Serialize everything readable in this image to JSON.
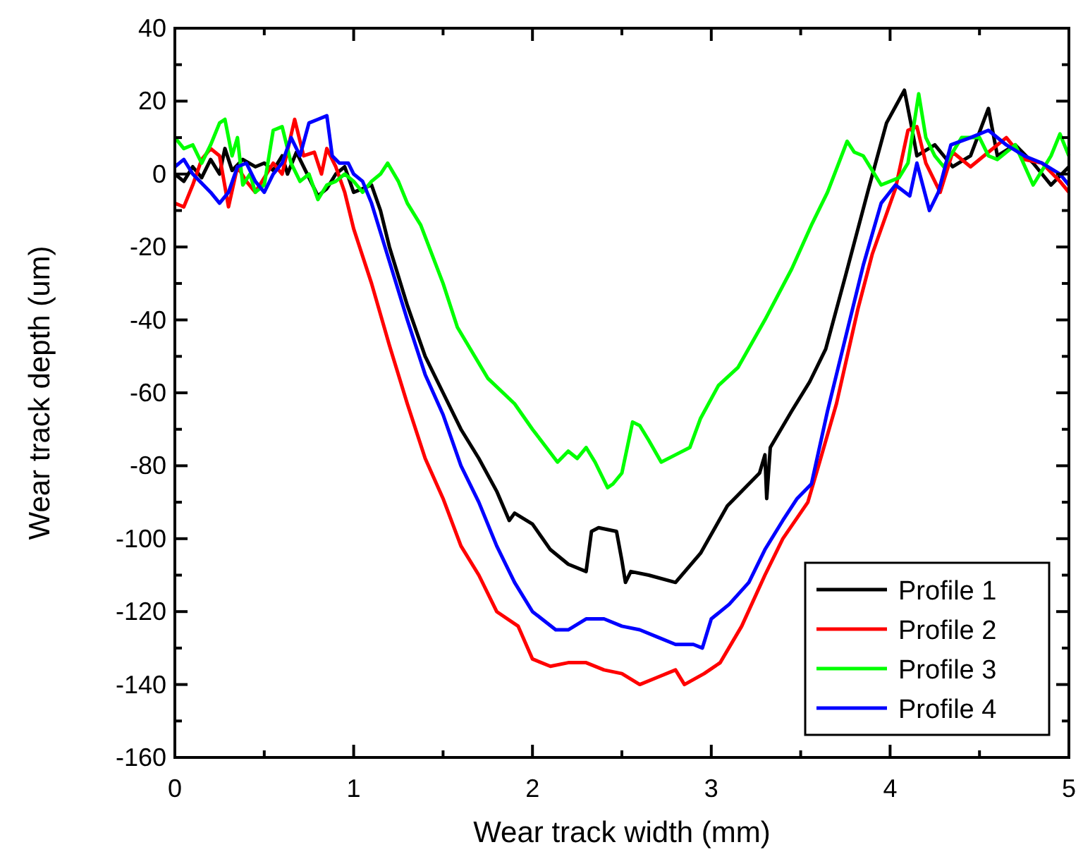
{
  "chart_data": {
    "type": "line",
    "xlabel": "Wear track width (mm)",
    "ylabel": "Wear track depth (um)",
    "xlim": [
      0,
      5
    ],
    "ylim": [
      -160,
      40
    ],
    "xticks": [
      0,
      {
        "value": 0.5,
        "label": null
      },
      1,
      {
        "value": 1.5,
        "label": null
      },
      2,
      {
        "value": 2.5,
        "label": null
      },
      3,
      {
        "value": 3.5,
        "label": null
      },
      4,
      {
        "value": 4.5,
        "label": null
      },
      5
    ],
    "yticks": [
      40,
      {
        "value": 30,
        "label": null
      },
      20,
      {
        "value": 10,
        "label": null
      },
      0,
      {
        "value": -10,
        "label": null
      },
      -20,
      {
        "value": -30,
        "label": null
      },
      -40,
      {
        "value": -50,
        "label": null
      },
      -60,
      {
        "value": -70,
        "label": null
      },
      -80,
      {
        "value": -90,
        "label": null
      },
      -100,
      {
        "value": -110,
        "label": null
      },
      -120,
      {
        "value": -130,
        "label": null
      },
      -140,
      {
        "value": -150,
        "label": null
      },
      -160
    ],
    "grid": false,
    "legend": "bottom right",
    "marker": "none",
    "line_style": "solid",
    "series": [
      {
        "name": "Profile 1",
        "color": "#000000",
        "x": [
          0,
          0.05,
          0.1,
          0.15,
          0.2,
          0.25,
          0.28,
          0.32,
          0.38,
          0.45,
          0.5,
          0.55,
          0.6,
          0.63,
          0.68,
          0.75,
          0.8,
          0.85,
          0.9,
          0.95,
          1.0,
          1.05,
          1.1,
          1.15,
          1.2,
          1.3,
          1.4,
          1.5,
          1.6,
          1.7,
          1.8,
          1.87,
          1.9,
          2.0,
          2.1,
          2.2,
          2.3,
          2.33,
          2.37,
          2.47,
          2.5,
          2.52,
          2.55,
          2.65,
          2.8,
          2.94,
          3.09,
          3.27,
          3.3,
          3.31,
          3.33,
          3.45,
          3.55,
          3.64,
          3.75,
          3.88,
          3.98,
          4.08,
          4.12,
          4.15,
          4.25,
          4.35,
          4.45,
          4.55,
          4.6,
          4.7,
          4.8,
          4.9,
          5.0
        ],
        "values": [
          0,
          -2,
          2,
          -1,
          4,
          0,
          7,
          1,
          4,
          2,
          3,
          1,
          5,
          0,
          6,
          -1,
          -6,
          -4,
          0,
          2,
          -5,
          -4,
          -3,
          -10,
          -20,
          -36,
          -50,
          -60,
          -70,
          -78,
          -87,
          -95,
          -93,
          -96,
          -103,
          -107,
          -109,
          -98,
          -97,
          -98,
          -106,
          -112,
          -109,
          -110,
          -112,
          -104,
          -91,
          -82,
          -77,
          -89,
          -75,
          -65,
          -57,
          -48,
          -28,
          -4,
          14,
          23,
          13,
          5,
          8,
          2,
          5,
          18,
          5,
          8,
          3,
          -3,
          2
        ]
      },
      {
        "name": "Profile 2",
        "color": "#ff0000",
        "x": [
          0,
          0.05,
          0.1,
          0.15,
          0.2,
          0.25,
          0.3,
          0.35,
          0.4,
          0.45,
          0.5,
          0.55,
          0.6,
          0.67,
          0.72,
          0.78,
          0.82,
          0.85,
          0.9,
          0.95,
          1.0,
          1.1,
          1.2,
          1.3,
          1.4,
          1.5,
          1.6,
          1.7,
          1.8,
          1.92,
          2.0,
          2.1,
          2.2,
          2.3,
          2.4,
          2.5,
          2.6,
          2.7,
          2.8,
          2.85,
          2.96,
          3.05,
          3.17,
          3.3,
          3.4,
          3.54,
          3.6,
          3.7,
          3.82,
          3.9,
          4.03,
          4.1,
          4.15,
          4.2,
          4.28,
          4.35,
          4.45,
          4.55,
          4.65,
          4.75,
          4.85,
          4.95,
          5.0
        ],
        "values": [
          -8,
          -9,
          -3,
          4,
          7,
          5,
          -9,
          2,
          -2,
          -5,
          -1,
          3,
          0,
          15,
          5,
          6,
          0,
          7,
          2,
          -5,
          -15,
          -30,
          -47,
          -63,
          -78,
          -89,
          -102,
          -110,
          -120,
          -124,
          -133,
          -135,
          -134,
          -134,
          -136,
          -137,
          -140,
          -138,
          -136,
          -140,
          -137,
          -134,
          -124,
          -110,
          -100,
          -90,
          -80,
          -63,
          -37,
          -22,
          -4,
          12,
          13,
          3,
          -5,
          6,
          2,
          6,
          10,
          4,
          3,
          -2,
          -5
        ]
      },
      {
        "name": "Profile 3",
        "color": "#00ff00",
        "x": [
          0,
          0.05,
          0.1,
          0.15,
          0.2,
          0.25,
          0.28,
          0.32,
          0.35,
          0.38,
          0.42,
          0.45,
          0.5,
          0.55,
          0.6,
          0.65,
          0.7,
          0.75,
          0.8,
          0.85,
          0.9,
          0.95,
          1.0,
          1.05,
          1.1,
          1.15,
          1.19,
          1.25,
          1.3,
          1.375,
          1.5,
          1.58,
          1.75,
          1.9,
          2.0,
          2.14,
          2.2,
          2.25,
          2.3,
          2.35,
          2.42,
          2.45,
          2.5,
          2.56,
          2.6,
          2.65,
          2.72,
          2.8,
          2.88,
          2.94,
          3.04,
          3.15,
          3.3,
          3.45,
          3.56,
          3.65,
          3.76,
          3.8,
          3.85,
          3.9,
          3.95,
          4.05,
          4.1,
          4.16,
          4.2,
          4.25,
          4.3,
          4.4,
          4.5,
          4.55,
          4.6,
          4.7,
          4.8,
          4.9,
          4.95,
          5.0
        ],
        "values": [
          10,
          7,
          8,
          3,
          8,
          14,
          15,
          5,
          10,
          -3,
          0,
          -5,
          -3,
          12,
          13,
          3,
          -2,
          0,
          -7,
          -3,
          -2,
          0,
          -2,
          -5,
          -2,
          0,
          3,
          -2,
          -8,
          -14,
          -30,
          -42,
          -56,
          -63,
          -70,
          -79,
          -76,
          -78,
          -75,
          -79,
          -86,
          -85,
          -82,
          -68,
          -69,
          -73,
          -79,
          -77,
          -75,
          -67,
          -58,
          -53,
          -40,
          -26,
          -14,
          -5,
          9,
          6,
          5,
          1,
          -3,
          -1,
          3,
          22,
          10,
          5,
          2,
          10,
          10,
          5,
          4,
          8,
          -3,
          5,
          11,
          5
        ]
      },
      {
        "name": "Profile 4",
        "color": "#0000ff",
        "x": [
          0,
          0.05,
          0.1,
          0.2,
          0.25,
          0.3,
          0.35,
          0.4,
          0.45,
          0.5,
          0.55,
          0.6,
          0.65,
          0.7,
          0.75,
          0.8,
          0.85,
          0.88,
          0.92,
          0.97,
          1.0,
          1.05,
          1.1,
          1.2,
          1.3,
          1.4,
          1.5,
          1.6,
          1.7,
          1.8,
          1.9,
          2.0,
          2.13,
          2.2,
          2.3,
          2.4,
          2.5,
          2.6,
          2.7,
          2.8,
          2.9,
          2.95,
          3.0,
          3.1,
          3.21,
          3.3,
          3.4,
          3.48,
          3.56,
          3.65,
          3.75,
          3.85,
          3.95,
          4.03,
          4.11,
          4.15,
          4.22,
          4.27,
          4.34,
          4.45,
          4.55,
          4.65,
          4.75,
          4.85,
          4.95,
          5.0
        ],
        "values": [
          2,
          4,
          0,
          -5,
          -8,
          -5,
          2,
          3,
          -2,
          -5,
          0,
          3,
          10,
          5,
          14,
          15,
          16,
          5,
          3,
          3,
          0,
          -2,
          -8,
          -24,
          -40,
          -55,
          -66,
          -80,
          -90,
          -102,
          -112,
          -120,
          -125,
          -125,
          -122,
          -122,
          -124,
          -125,
          -127,
          -129,
          -129,
          -130,
          -122,
          -118,
          -112,
          -103,
          -95,
          -89,
          -85,
          -65,
          -45,
          -25,
          -8,
          -3,
          -6,
          3,
          -10,
          -5,
          8,
          10,
          12,
          8,
          5,
          3,
          0,
          -3
        ]
      }
    ]
  }
}
